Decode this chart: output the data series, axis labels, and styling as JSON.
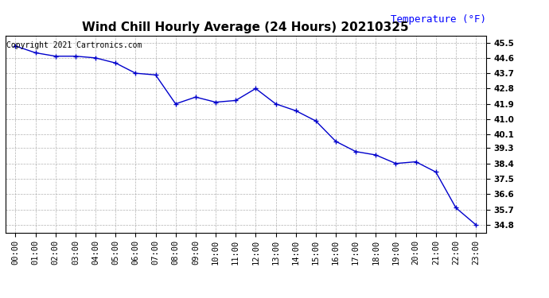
{
  "title": "Wind Chill Hourly Average (24 Hours) 20210325",
  "ylabel_text": "Temperature (°F)",
  "copyright_text": "Copyright 2021 Cartronics.com",
  "background_color": "#ffffff",
  "plot_bg_color": "#ffffff",
  "line_color": "#0000cc",
  "grid_color": "#aaaaaa",
  "hours": [
    0,
    1,
    2,
    3,
    4,
    5,
    6,
    7,
    8,
    9,
    10,
    11,
    12,
    13,
    14,
    15,
    16,
    17,
    18,
    19,
    20,
    21,
    22,
    23
  ],
  "x_labels": [
    "00:00",
    "01:00",
    "02:00",
    "03:00",
    "04:00",
    "05:00",
    "06:00",
    "07:00",
    "08:00",
    "09:00",
    "10:00",
    "11:00",
    "12:00",
    "13:00",
    "14:00",
    "15:00",
    "16:00",
    "17:00",
    "18:00",
    "19:00",
    "20:00",
    "21:00",
    "22:00",
    "23:00"
  ],
  "values": [
    45.3,
    44.9,
    44.7,
    44.7,
    44.6,
    44.3,
    43.7,
    43.6,
    41.9,
    42.3,
    42.0,
    42.1,
    42.8,
    41.9,
    41.5,
    40.9,
    39.7,
    39.1,
    38.9,
    38.4,
    38.5,
    37.9,
    35.8,
    34.8
  ],
  "ylim_min": 34.35,
  "ylim_max": 45.9,
  "yticks": [
    34.8,
    35.7,
    36.6,
    37.5,
    38.4,
    39.3,
    40.1,
    41.0,
    41.9,
    42.8,
    43.7,
    44.6,
    45.5
  ],
  "ytick_labels": [
    "34.8",
    "35.7",
    "36.6",
    "37.5",
    "38.4",
    "39.3",
    "40.1",
    "41.0",
    "41.9",
    "42.8",
    "43.7",
    "44.6",
    "45.5"
  ],
  "title_fontsize": 11,
  "ylabel_fontsize": 9,
  "tick_fontsize": 7.5,
  "copyright_fontsize": 7
}
